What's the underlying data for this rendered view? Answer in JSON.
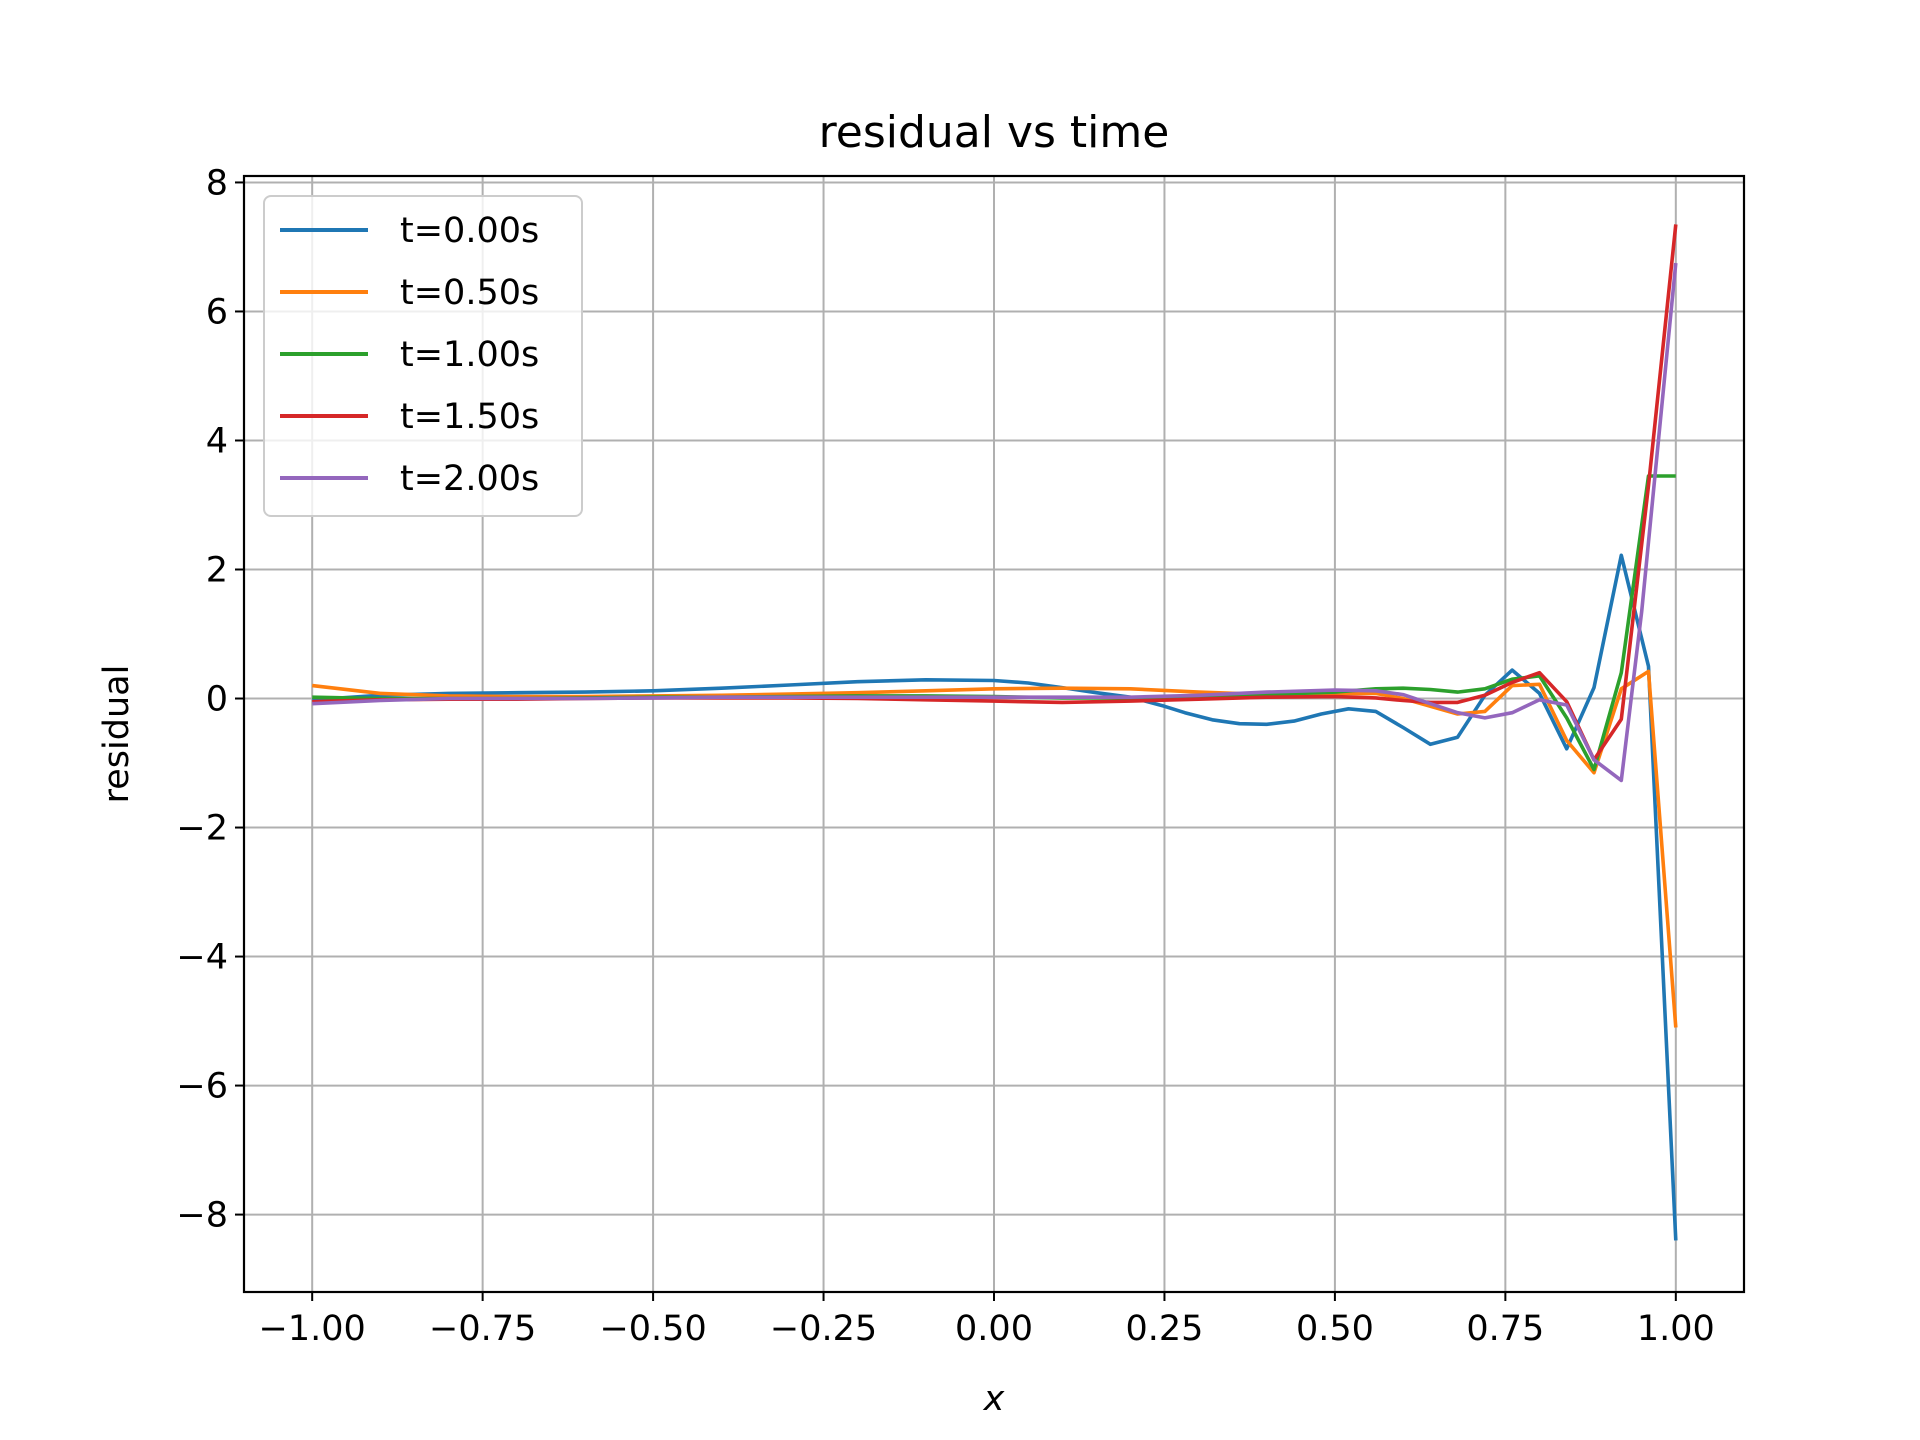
{
  "chart_data": {
    "type": "line",
    "title": "residual vs time",
    "xlabel": "x",
    "ylabel": "residual",
    "xlim": [
      -1.1,
      1.1
    ],
    "ylim": [
      -9.2,
      8.1
    ],
    "xticks": [
      -1.0,
      -0.75,
      -0.5,
      -0.25,
      0.0,
      0.25,
      0.5,
      0.75,
      1.0
    ],
    "xtick_labels": [
      "−1.00",
      "−0.75",
      "−0.50",
      "−0.25",
      "0.00",
      "0.25",
      "0.50",
      "0.75",
      "1.00"
    ],
    "yticks": [
      -8,
      -6,
      -4,
      -2,
      0,
      2,
      4,
      6,
      8
    ],
    "ytick_labels": [
      "−8",
      "−6",
      "−4",
      "−2",
      "0",
      "2",
      "4",
      "6",
      "8"
    ],
    "grid": true,
    "legend_position": "upper-left",
    "series": [
      {
        "name": "t=0.00s",
        "color": "#1f77b4",
        "points": [
          [
            -1.0,
            -0.02
          ],
          [
            -0.9,
            0.05
          ],
          [
            -0.8,
            0.08
          ],
          [
            -0.7,
            0.09
          ],
          [
            -0.6,
            0.1
          ],
          [
            -0.5,
            0.12
          ],
          [
            -0.4,
            0.16
          ],
          [
            -0.3,
            0.21
          ],
          [
            -0.2,
            0.26
          ],
          [
            -0.1,
            0.29
          ],
          [
            0.0,
            0.28
          ],
          [
            0.05,
            0.24
          ],
          [
            0.1,
            0.17
          ],
          [
            0.15,
            0.09
          ],
          [
            0.2,
            0.02
          ],
          [
            0.25,
            -0.12
          ],
          [
            0.28,
            -0.22
          ],
          [
            0.32,
            -0.33
          ],
          [
            0.36,
            -0.39
          ],
          [
            0.4,
            -0.4
          ],
          [
            0.44,
            -0.35
          ],
          [
            0.48,
            -0.24
          ],
          [
            0.52,
            -0.16
          ],
          [
            0.56,
            -0.2
          ],
          [
            0.6,
            -0.45
          ],
          [
            0.64,
            -0.71
          ],
          [
            0.68,
            -0.6
          ],
          [
            0.72,
            0.05
          ],
          [
            0.76,
            0.44
          ],
          [
            0.8,
            0.08
          ],
          [
            0.84,
            -0.78
          ],
          [
            0.88,
            0.17
          ],
          [
            0.92,
            2.22
          ],
          [
            0.96,
            0.5
          ],
          [
            1.0,
            -8.4
          ]
        ]
      },
      {
        "name": "t=0.50s",
        "color": "#ff7f0e",
        "points": [
          [
            -1.0,
            0.2
          ],
          [
            -0.9,
            0.08
          ],
          [
            -0.8,
            0.04
          ],
          [
            -0.7,
            0.03
          ],
          [
            -0.6,
            0.03
          ],
          [
            -0.5,
            0.04
          ],
          [
            -0.4,
            0.05
          ],
          [
            -0.3,
            0.07
          ],
          [
            -0.2,
            0.09
          ],
          [
            -0.1,
            0.12
          ],
          [
            0.0,
            0.15
          ],
          [
            0.1,
            0.16
          ],
          [
            0.2,
            0.15
          ],
          [
            0.3,
            0.1
          ],
          [
            0.4,
            0.06
          ],
          [
            0.5,
            0.08
          ],
          [
            0.56,
            0.08
          ],
          [
            0.6,
            0.0
          ],
          [
            0.64,
            -0.12
          ],
          [
            0.68,
            -0.24
          ],
          [
            0.72,
            -0.2
          ],
          [
            0.76,
            0.2
          ],
          [
            0.8,
            0.22
          ],
          [
            0.84,
            -0.65
          ],
          [
            0.88,
            -1.15
          ],
          [
            0.92,
            0.15
          ],
          [
            0.96,
            0.42
          ],
          [
            1.0,
            -5.1
          ]
        ]
      },
      {
        "name": "t=1.00s",
        "color": "#2ca02c",
        "points": [
          [
            -1.0,
            0.02
          ],
          [
            -0.9,
            0.0
          ],
          [
            -0.8,
            0.0
          ],
          [
            -0.7,
            0.0
          ],
          [
            -0.6,
            0.01
          ],
          [
            -0.5,
            0.02
          ],
          [
            -0.4,
            0.02
          ],
          [
            -0.3,
            0.03
          ],
          [
            -0.2,
            0.04
          ],
          [
            -0.1,
            0.04
          ],
          [
            0.0,
            0.03
          ],
          [
            0.1,
            0.01
          ],
          [
            0.2,
            0.01
          ],
          [
            0.3,
            0.02
          ],
          [
            0.4,
            0.06
          ],
          [
            0.5,
            0.1
          ],
          [
            0.56,
            0.15
          ],
          [
            0.6,
            0.16
          ],
          [
            0.64,
            0.14
          ],
          [
            0.68,
            0.1
          ],
          [
            0.72,
            0.15
          ],
          [
            0.76,
            0.3
          ],
          [
            0.8,
            0.35
          ],
          [
            0.84,
            -0.3
          ],
          [
            0.88,
            -1.1
          ],
          [
            0.92,
            0.4
          ],
          [
            0.96,
            3.45
          ],
          [
            1.0,
            3.45
          ]
        ]
      },
      {
        "name": "t=1.50s",
        "color": "#d62728",
        "points": [
          [
            -1.0,
            -0.05
          ],
          [
            -0.9,
            -0.02
          ],
          [
            -0.8,
            -0.01
          ],
          [
            -0.7,
            -0.01
          ],
          [
            -0.6,
            0.0
          ],
          [
            -0.5,
            0.01
          ],
          [
            -0.4,
            0.01
          ],
          [
            -0.3,
            0.01
          ],
          [
            -0.2,
            0.0
          ],
          [
            -0.1,
            -0.02
          ],
          [
            0.0,
            -0.04
          ],
          [
            0.1,
            -0.06
          ],
          [
            0.2,
            -0.04
          ],
          [
            0.3,
            -0.01
          ],
          [
            0.4,
            0.02
          ],
          [
            0.5,
            0.03
          ],
          [
            0.56,
            0.01
          ],
          [
            0.6,
            -0.03
          ],
          [
            0.64,
            -0.06
          ],
          [
            0.68,
            -0.06
          ],
          [
            0.72,
            0.05
          ],
          [
            0.76,
            0.25
          ],
          [
            0.8,
            0.4
          ],
          [
            0.84,
            -0.05
          ],
          [
            0.88,
            -0.95
          ],
          [
            0.92,
            -0.32
          ],
          [
            0.96,
            3.3
          ],
          [
            1.0,
            7.35
          ]
        ]
      },
      {
        "name": "t=2.00s",
        "color": "#9467bd",
        "points": [
          [
            -1.0,
            -0.08
          ],
          [
            -0.9,
            -0.03
          ],
          [
            -0.8,
            0.0
          ],
          [
            -0.7,
            0.0
          ],
          [
            -0.6,
            0.0
          ],
          [
            -0.5,
            0.01
          ],
          [
            -0.4,
            0.02
          ],
          [
            -0.3,
            0.02
          ],
          [
            -0.2,
            0.02
          ],
          [
            -0.1,
            0.02
          ],
          [
            0.0,
            0.02
          ],
          [
            0.1,
            0.02
          ],
          [
            0.2,
            0.02
          ],
          [
            0.3,
            0.05
          ],
          [
            0.4,
            0.1
          ],
          [
            0.5,
            0.13
          ],
          [
            0.56,
            0.12
          ],
          [
            0.6,
            0.06
          ],
          [
            0.64,
            -0.08
          ],
          [
            0.68,
            -0.22
          ],
          [
            0.72,
            -0.3
          ],
          [
            0.76,
            -0.22
          ],
          [
            0.8,
            -0.02
          ],
          [
            0.84,
            -0.1
          ],
          [
            0.88,
            -0.95
          ],
          [
            0.92,
            -1.27
          ],
          [
            0.95,
            1.35
          ],
          [
            1.0,
            6.75
          ]
        ]
      }
    ]
  }
}
